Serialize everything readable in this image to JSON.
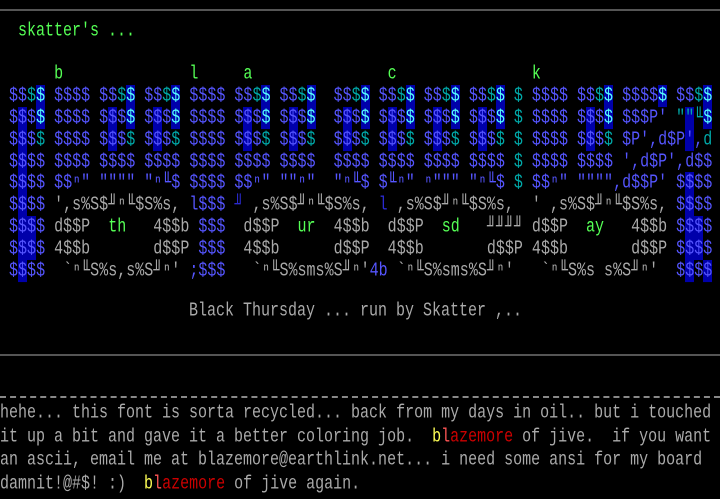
{
  "header": {
    "title": "skatter's ..."
  },
  "art": {
    "rows": [
      "      b              l     a               c               k",
      " $$$$ $$$$ $$$$ $$$$ $$$$ $$$$ $$$$  $$$$ $$$$ $$$$ $$$$ $ $$$$ $$$$ $$$$$ $$$$",
      " $$$$ $$$$ $$$$ $$$$ $$$$ $$$$ $$$$  $$$$ $$$$ $$$$ $$$$ $ $$$$ $$$$ $$$P' \"\"╙$",
      " $$$$ $$$$ $$$$ $$$$ $$$$ $$$$ $$$$  $$$$ $$$$ $$$$ $$$$ $ $$$$ $$$$ $P',d$P',d",
      " $$$$ $$$$ $$$$ $$$$ $$$$ $$$$ $$$$  $$$$ $$$$ $$$$ $$$$ $ $$$$ $$$$ ',d$P',d$$",
      " $$$$ $$ⁿ\" \"\"\"\" \"ⁿ╙$ $$$$ $$ⁿ\" \"\"ⁿ\"  \"ⁿ╙$ $╙ⁿ\" ⁿ\"\"\" \"ⁿ╙$ $ $$ⁿ\" \"\"\"\",d$$P' $$$$",
      " $$$$ ',s%S$╜ⁿ╙$S%s, l$$$ ╜ ,s%S$╜ⁿ╙$S%s, l ,s%S$╜ⁿ╙$S%s,  ' ,s%S$╜ⁿ╙$S%s, $$$$",
      " $$$$ d$$P  th   4$$b $$$  d$$P  ur  4$$b  d$$P  sd   ╜╜╜╜ d$$P  ay   4$$b $$$$",
      " $$$$ 4$$b       d$$P $$$  4$$b      d$$P  4$$b       d$$P 4$$b       d$$P $$$$",
      " $$$$  `ⁿ╙S%s,s%S╜ⁿ' ;$$$   `ⁿ╙S%sms%S╜ⁿ'4b `ⁿ╙S%sms%S╜ⁿ'   `ⁿ╙S%s s%S╜ⁿ'  $$$$"
    ]
  },
  "caption": "Black Thursday ... run by Skatter ,..",
  "notes": {
    "line1": "hehe... this font is sorta recycled... back from my days in oil.. but i touched",
    "line2_a": "it up a bit and gave it a better coloring job.  ",
    "line2_sig_b": "b",
    "line2_sig_l": "l",
    "line2_sig_rest": "azemore",
    "line2_b": " of jive.  if you want",
    "line3": "an ascii, email me at blazemore@earthlink.net... i need some ansi for my board",
    "line4_a": "damnit!@#$! :)  ",
    "line4_sig_b": "b",
    "line4_sig_l": "l",
    "line4_sig_rest": "azemore",
    "line4_b": " of jive again."
  },
  "colors": {
    "background": "#000000",
    "green": "#55ff55",
    "blue": "#5555ff",
    "dark_blue": "#2a2ad0",
    "block_bg": "#0000aa",
    "cyan": "#55ffff",
    "teal": "#00aaaa",
    "gray": "#aaaaaa",
    "yellow": "#ffff55",
    "red": "#ff5555",
    "dark_red": "#cc0000"
  }
}
